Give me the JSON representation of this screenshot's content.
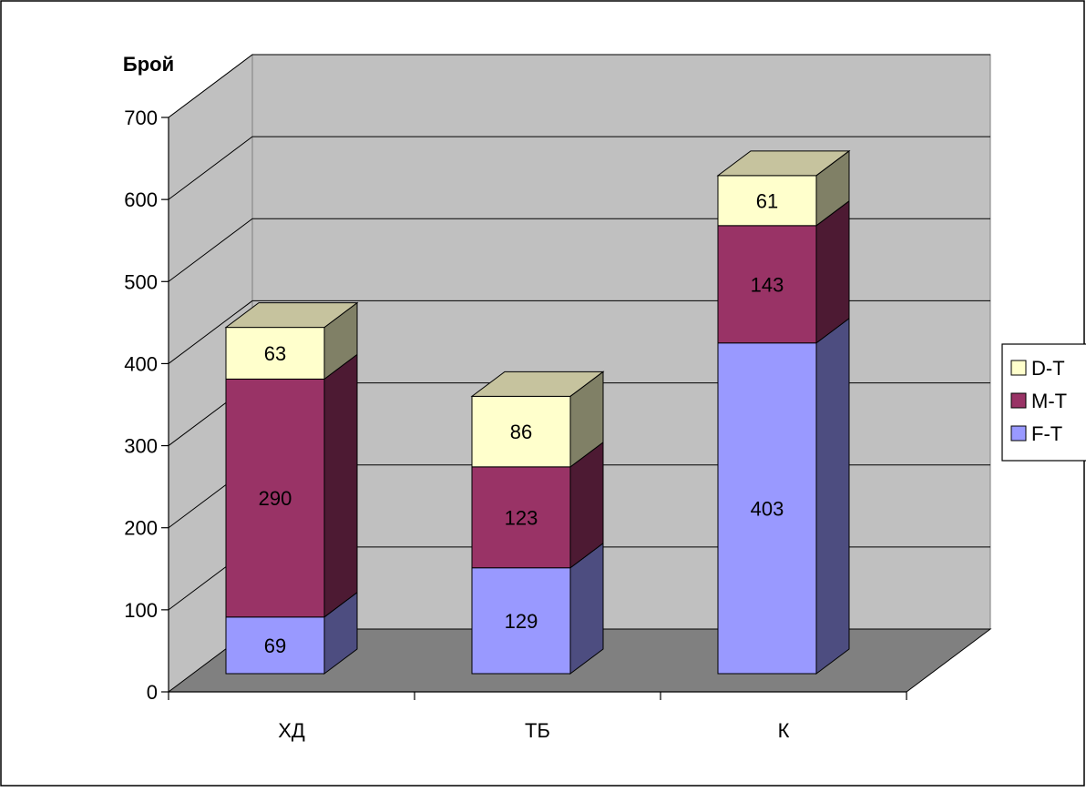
{
  "chart_data": {
    "type": "bar",
    "stacked": true,
    "three_d": true,
    "categories": [
      "ХД",
      "ТБ",
      "К"
    ],
    "series": [
      {
        "name": "F-T",
        "values": [
          69,
          129,
          403
        ],
        "color": "#9999ff",
        "side_color": "#4d4d80",
        "top_color": "#7777cc"
      },
      {
        "name": "M-T",
        "values": [
          290,
          123,
          143
        ],
        "color": "#993366",
        "side_color": "#4d1a33",
        "top_color": "#7a2952"
      },
      {
        "name": "D-T",
        "values": [
          63,
          86,
          61
        ],
        "color": "#ffffcc",
        "side_color": "#808066",
        "top_color": "#c6c39e"
      }
    ],
    "ylabel": "Брой",
    "xlabel": "",
    "ylim": [
      0,
      700
    ],
    "yticks": [
      0,
      100,
      200,
      300,
      400,
      500,
      600,
      700
    ],
    "grid": true,
    "legend_position": "right",
    "legend_order": [
      "D-T",
      "M-T",
      "F-T"
    ],
    "wall_color": "#c0c0c0",
    "floor_color": "#808080"
  }
}
